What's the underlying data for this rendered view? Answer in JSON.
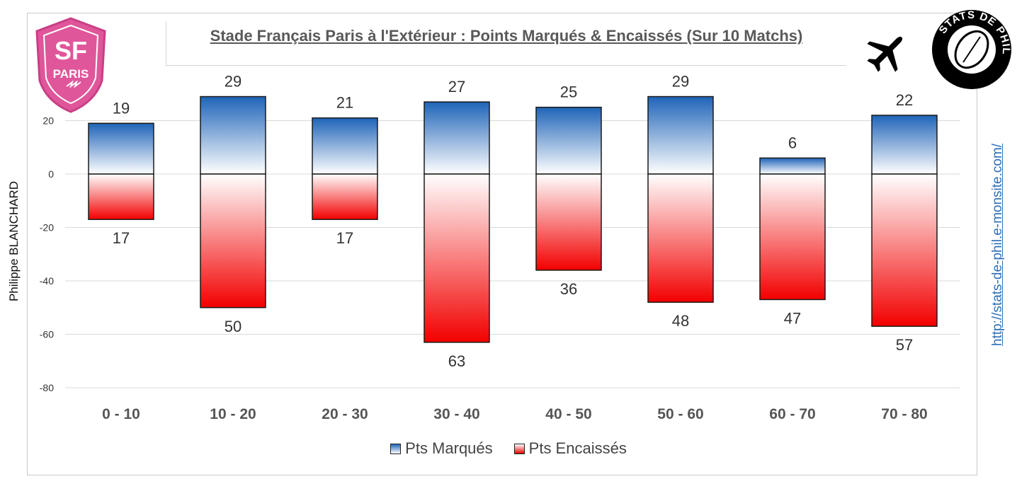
{
  "title": "Stade Français Paris à l'Extérieur : Points Marqués & Encaissés (Sur 10 Matchs)",
  "author": "Philippe BLANCHARD",
  "url": "http://stats-de-phil.e-monsite.com/",
  "logos": {
    "club_text_top": "SF",
    "club_text_bottom": "PARIS",
    "site_text": "STATS DE PHIL",
    "plane_icon": "airplane-icon"
  },
  "colors": {
    "scored": "#1f64b8",
    "conceded": "#f20000",
    "logo_pink": "#e0569a"
  },
  "legend": {
    "scored": "Pts Marqués",
    "conceded": "Pts Encaissés"
  },
  "chart_data": {
    "type": "bar",
    "title": "Stade Français Paris à l'Extérieur : Points Marqués & Encaissés (Sur 10 Matchs)",
    "categories": [
      "0 - 10",
      "10 - 20",
      "20 - 30",
      "30 - 40",
      "40 - 50",
      "50 - 60",
      "60 - 70",
      "70 - 80"
    ],
    "series": [
      {
        "name": "Pts Marqués",
        "values": [
          19,
          29,
          21,
          27,
          25,
          29,
          6,
          22
        ]
      },
      {
        "name": "Pts Encaissés",
        "values": [
          -17,
          -50,
          -17,
          -63,
          -36,
          -48,
          -47,
          -57
        ]
      }
    ],
    "data_labels": {
      "scored": [
        "19",
        "29",
        "21",
        "27",
        "25",
        "29",
        "6",
        "22"
      ],
      "conceded": [
        "17",
        "50",
        "17",
        "63",
        "36",
        "48",
        "47",
        "57"
      ]
    },
    "y_ticks": [
      20,
      0,
      -20,
      -40,
      -60,
      -80
    ],
    "ylim": [
      -80,
      30
    ],
    "grid": true,
    "legend_position": "bottom",
    "xlabel": "",
    "ylabel": ""
  }
}
